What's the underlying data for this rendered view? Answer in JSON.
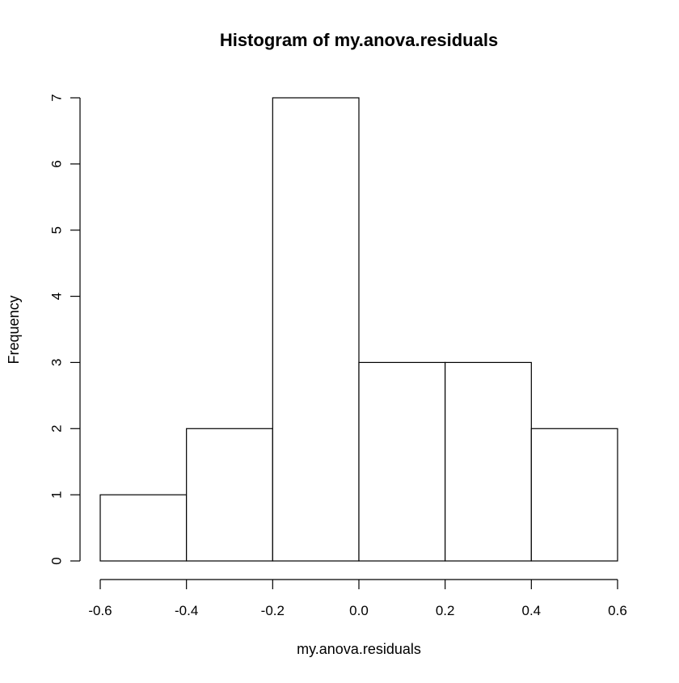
{
  "chart_data": {
    "type": "bar",
    "title": "Histogram of my.anova.residuals",
    "xlabel": "my.anova.residuals",
    "ylabel": "Frequency",
    "bins": [
      {
        "x0": -0.6,
        "x1": -0.4,
        "count": 1
      },
      {
        "x0": -0.4,
        "x1": -0.2,
        "count": 2
      },
      {
        "x0": -0.2,
        "x1": 0.0,
        "count": 7
      },
      {
        "x0": 0.0,
        "x1": 0.2,
        "count": 3
      },
      {
        "x0": 0.2,
        "x1": 0.4,
        "count": 3
      },
      {
        "x0": 0.4,
        "x1": 0.6,
        "count": 2
      }
    ],
    "xlim": [
      -0.6,
      0.6
    ],
    "ylim": [
      0,
      7
    ],
    "x_ticks": [
      -0.6,
      -0.4,
      -0.2,
      0.0,
      0.2,
      0.4,
      0.6
    ],
    "x_tick_labels": [
      "-0.6",
      "-0.4",
      "-0.2",
      "0.0",
      "0.2",
      "0.4",
      "0.6"
    ],
    "y_ticks": [
      0,
      1,
      2,
      3,
      4,
      5,
      6,
      7
    ],
    "y_tick_labels": [
      "0",
      "1",
      "2",
      "3",
      "4",
      "5",
      "6",
      "7"
    ],
    "grid": false,
    "legend": "none",
    "colors": {
      "bar_fill": "#ffffff",
      "bar_stroke": "#000000",
      "axis": "#000000",
      "background": "#ffffff"
    }
  }
}
